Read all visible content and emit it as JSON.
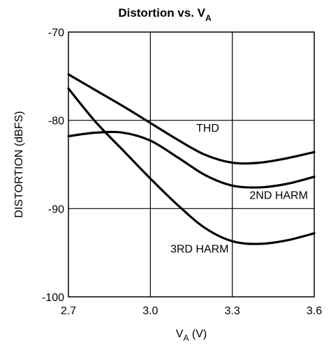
{
  "chart_data": {
    "type": "line",
    "title_main": "Distortion vs. V",
    "title_sub": "A",
    "xlabel_main": "V",
    "xlabel_sub": "A",
    "xlabel_unit": " (V)",
    "ylabel": "DISTORTION (dBFS)",
    "xlim": [
      2.7,
      3.6
    ],
    "ylim": [
      -100,
      -70
    ],
    "x_ticks": [
      2.7,
      3.0,
      3.3,
      3.6
    ],
    "x_tick_labels": [
      "2.7",
      "3.0",
      "3.3",
      "3.6"
    ],
    "y_ticks": [
      -100,
      -90,
      -80,
      -70
    ],
    "y_tick_labels": [
      "-100",
      "-90",
      "-80",
      "-70"
    ],
    "grid": true,
    "series": [
      {
        "name": "THD",
        "x": [
          2.7,
          2.8,
          2.9,
          3.0,
          3.1,
          3.2,
          3.3,
          3.4,
          3.5,
          3.6
        ],
        "y": [
          -74.8,
          -76.6,
          -78.4,
          -80.3,
          -82.2,
          -83.9,
          -84.8,
          -84.8,
          -84.3,
          -83.6
        ]
      },
      {
        "name": "2ND HARM",
        "x": [
          2.7,
          2.8,
          2.9,
          3.0,
          3.1,
          3.2,
          3.3,
          3.4,
          3.5,
          3.6
        ],
        "y": [
          -81.8,
          -81.4,
          -81.4,
          -82.3,
          -84.2,
          -86.2,
          -87.4,
          -87.6,
          -87.2,
          -86.4
        ]
      },
      {
        "name": "3RD HARM",
        "x": [
          2.7,
          2.8,
          2.9,
          3.0,
          3.1,
          3.2,
          3.3,
          3.4,
          3.5,
          3.6
        ],
        "y": [
          -76.4,
          -80.2,
          -83.4,
          -86.6,
          -89.6,
          -92.2,
          -93.7,
          -94.0,
          -93.6,
          -92.8
        ]
      }
    ],
    "annotations": [
      {
        "text": "THD",
        "x": 3.21,
        "y": -81.3,
        "anchor": "middle"
      },
      {
        "text": "2ND HARM",
        "x": 3.47,
        "y": -88.9,
        "anchor": "middle"
      },
      {
        "text": "3RD HARM",
        "x": 3.18,
        "y": -95.0,
        "anchor": "middle"
      }
    ]
  }
}
